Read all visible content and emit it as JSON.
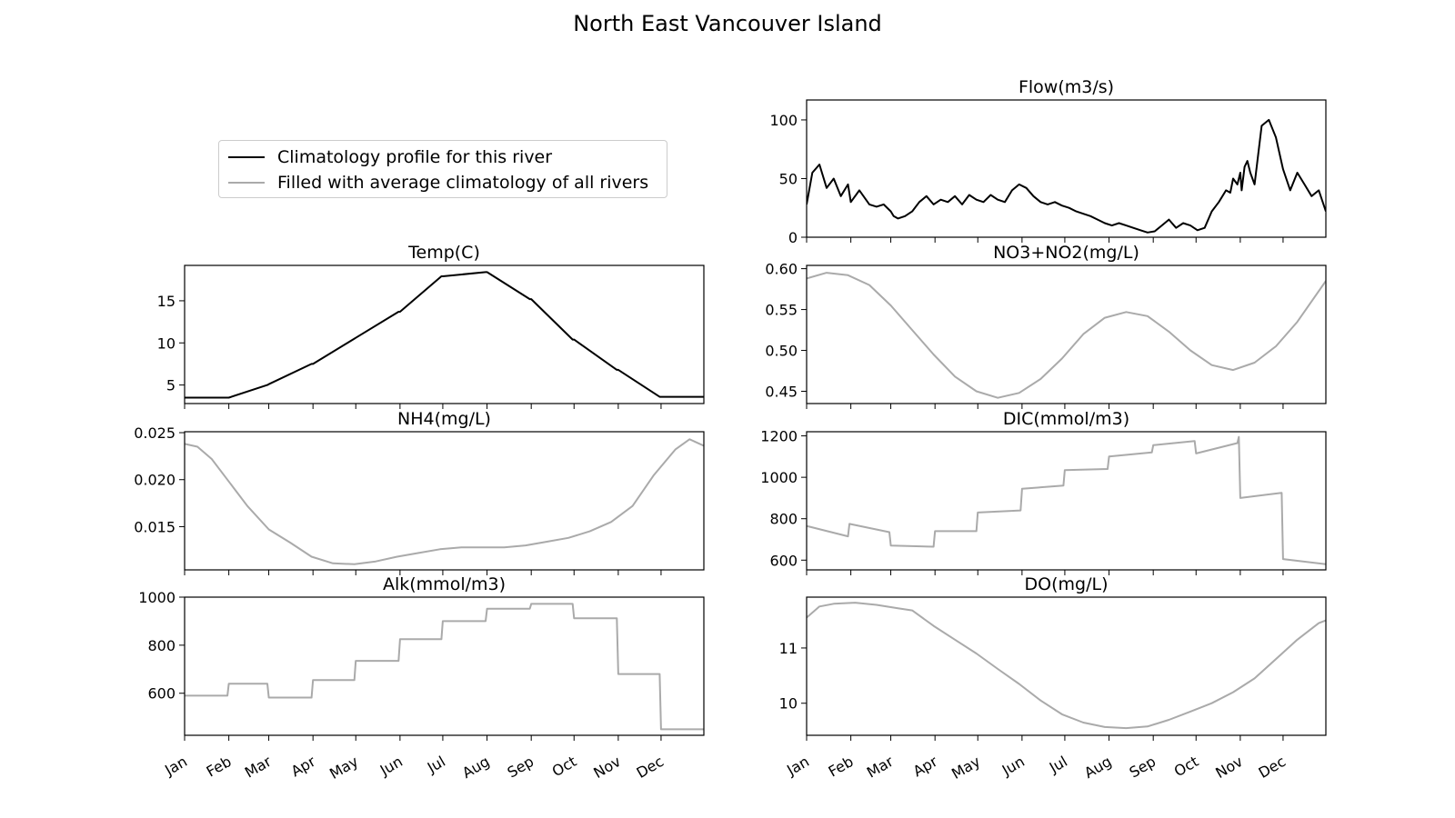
{
  "title": "North East Vancouver Island",
  "legend": [
    {
      "label": "Climatology profile for this river",
      "color": "#000000"
    },
    {
      "label": "Filled with average climatology of all rivers",
      "color": "#aaaaaa"
    }
  ],
  "months": [
    "Jan",
    "Feb",
    "Mar",
    "Apr",
    "May",
    "Jun",
    "Jul",
    "Aug",
    "Sep",
    "Oct",
    "Nov",
    "Dec"
  ],
  "chart_data": [
    {
      "type": "line",
      "title": "Flow(m3/s)",
      "color": "#000000",
      "position": "right-1",
      "ylim": [
        0,
        117
      ],
      "yticks": [
        0,
        50,
        100
      ],
      "ytick_labels": [
        "0",
        "50",
        "100"
      ],
      "x": [
        1,
        5,
        10,
        15,
        20,
        25,
        30,
        32,
        38,
        45,
        50,
        55,
        60,
        62,
        65,
        70,
        75,
        80,
        85,
        90,
        95,
        100,
        105,
        110,
        115,
        120,
        125,
        130,
        135,
        140,
        145,
        150,
        155,
        160,
        165,
        170,
        175,
        180,
        185,
        190,
        195,
        200,
        205,
        210,
        215,
        220,
        225,
        230,
        235,
        240,
        245,
        250,
        255,
        260,
        265,
        270,
        275,
        280,
        285,
        290,
        295,
        298,
        300,
        303,
        305,
        306,
        308,
        310,
        312,
        315,
        320,
        325,
        330,
        335,
        340,
        345,
        350,
        355,
        360,
        365
      ],
      "values": [
        28,
        55,
        62,
        42,
        50,
        35,
        45,
        30,
        40,
        28,
        26,
        28,
        22,
        18,
        16,
        18,
        22,
        30,
        35,
        28,
        32,
        30,
        35,
        28,
        36,
        32,
        30,
        36,
        32,
        30,
        40,
        45,
        42,
        35,
        30,
        28,
        30,
        27,
        25,
        22,
        20,
        18,
        15,
        12,
        10,
        12,
        10,
        8,
        6,
        4,
        5,
        10,
        15,
        8,
        12,
        10,
        6,
        8,
        22,
        30,
        40,
        38,
        50,
        45,
        55,
        40,
        60,
        65,
        55,
        45,
        95,
        100,
        85,
        58,
        40,
        55,
        45,
        35,
        40,
        22
      ],
      "source": "climatology"
    },
    {
      "type": "line",
      "title": "Temp(C)",
      "color": "#000000",
      "position": "left-2",
      "ylim": [
        2.8,
        19.2
      ],
      "yticks": [
        5,
        10,
        15
      ],
      "ytick_labels": [
        "5",
        "10",
        "15"
      ],
      "x": [
        1,
        31,
        32,
        59,
        60,
        90,
        91,
        120,
        121,
        151,
        152,
        181,
        182,
        212,
        213,
        243,
        244,
        273,
        274,
        304,
        305,
        334,
        335,
        365
      ],
      "values": [
        3.5,
        3.5,
        3.5,
        5.0,
        5.1,
        7.5,
        7.5,
        10.5,
        10.6,
        13.7,
        13.7,
        17.9,
        17.9,
        18.4,
        18.4,
        15.2,
        15.2,
        10.4,
        10.4,
        6.8,
        6.8,
        3.6,
        3.6,
        3.6
      ],
      "source": "climatology"
    },
    {
      "type": "line",
      "title": "NO3+NO2(mg/L)",
      "color": "#aaaaaa",
      "position": "right-2",
      "ylim": [
        0.435,
        0.604
      ],
      "yticks": [
        0.45,
        0.5,
        0.55,
        0.6
      ],
      "ytick_labels": [
        "0.45",
        "0.50",
        "0.55",
        "0.60"
      ],
      "x": [
        1,
        15,
        30,
        45,
        60,
        75,
        90,
        105,
        120,
        135,
        150,
        165,
        180,
        195,
        210,
        225,
        240,
        255,
        270,
        285,
        300,
        315,
        330,
        345,
        365
      ],
      "values": [
        0.588,
        0.595,
        0.592,
        0.58,
        0.555,
        0.525,
        0.495,
        0.468,
        0.45,
        0.442,
        0.448,
        0.465,
        0.49,
        0.52,
        0.54,
        0.547,
        0.542,
        0.523,
        0.5,
        0.482,
        0.476,
        0.485,
        0.505,
        0.535,
        0.585
      ],
      "source": "filled"
    },
    {
      "type": "line",
      "title": "NH4(mg/L)",
      "color": "#aaaaaa",
      "position": "left-3",
      "ylim": [
        0.0104,
        0.0251
      ],
      "yticks": [
        0.015,
        0.02,
        0.025
      ],
      "ytick_labels": [
        "0.015",
        "0.020",
        "0.025"
      ],
      "x": [
        1,
        10,
        20,
        30,
        45,
        60,
        75,
        90,
        105,
        120,
        135,
        150,
        165,
        180,
        195,
        210,
        225,
        240,
        255,
        270,
        285,
        300,
        315,
        330,
        345,
        355,
        365
      ],
      "values": [
        0.0238,
        0.0235,
        0.0222,
        0.0202,
        0.0172,
        0.0147,
        0.0133,
        0.0118,
        0.0111,
        0.011,
        0.0113,
        0.0118,
        0.0122,
        0.0126,
        0.0128,
        0.0128,
        0.0128,
        0.013,
        0.0134,
        0.0138,
        0.0145,
        0.0155,
        0.0172,
        0.0205,
        0.0232,
        0.0243,
        0.0236
      ],
      "source": "filled"
    },
    {
      "type": "line",
      "title": "DIC(mmol/m3)",
      "color": "#aaaaaa",
      "position": "right-3",
      "ylim": [
        553,
        1220
      ],
      "yticks": [
        600,
        800,
        1000,
        1200
      ],
      "ytick_labels": [
        "600",
        "800",
        "1000",
        "1200"
      ],
      "x": [
        1,
        30,
        31,
        59,
        60,
        90,
        91,
        120,
        121,
        151,
        152,
        181,
        182,
        212,
        213,
        243,
        244,
        273,
        274,
        303,
        304,
        305,
        334,
        335,
        365
      ],
      "values": [
        765,
        715,
        775,
        735,
        670,
        665,
        740,
        740,
        830,
        840,
        945,
        960,
        1035,
        1040,
        1100,
        1120,
        1155,
        1175,
        1115,
        1165,
        1195,
        900,
        925,
        605,
        580
      ],
      "source": "filled"
    },
    {
      "type": "line",
      "title": "Alk(mmol/m3)",
      "color": "#aaaaaa",
      "position": "left-4",
      "ylim": [
        425,
        1000
      ],
      "yticks": [
        600,
        800,
        1000
      ],
      "ytick_labels": [
        "600",
        "800",
        "1000"
      ],
      "x": [
        1,
        31,
        32,
        59,
        60,
        90,
        91,
        120,
        121,
        151,
        152,
        181,
        182,
        212,
        213,
        243,
        244,
        273,
        274,
        304,
        305,
        334,
        335,
        365
      ],
      "values": [
        590,
        590,
        640,
        640,
        582,
        582,
        655,
        655,
        735,
        735,
        825,
        825,
        900,
        900,
        952,
        952,
        972,
        972,
        912,
        912,
        680,
        680,
        450,
        450
      ],
      "source": "filled"
    },
    {
      "type": "line",
      "title": "DO(mg/L)",
      "color": "#aaaaaa",
      "position": "right-4",
      "ylim": [
        9.42,
        11.92
      ],
      "yticks": [
        10,
        11
      ],
      "ytick_labels": [
        "10",
        "11"
      ],
      "x": [
        1,
        10,
        20,
        35,
        50,
        65,
        75,
        90,
        105,
        120,
        135,
        150,
        165,
        180,
        195,
        210,
        225,
        240,
        255,
        270,
        285,
        300,
        315,
        330,
        345,
        360,
        365
      ],
      "values": [
        11.55,
        11.75,
        11.8,
        11.82,
        11.78,
        11.72,
        11.68,
        11.4,
        11.15,
        10.9,
        10.62,
        10.35,
        10.05,
        9.8,
        9.65,
        9.57,
        9.55,
        9.58,
        9.7,
        9.85,
        10.0,
        10.2,
        10.45,
        10.8,
        11.15,
        11.45,
        11.5
      ],
      "source": "filled"
    }
  ]
}
